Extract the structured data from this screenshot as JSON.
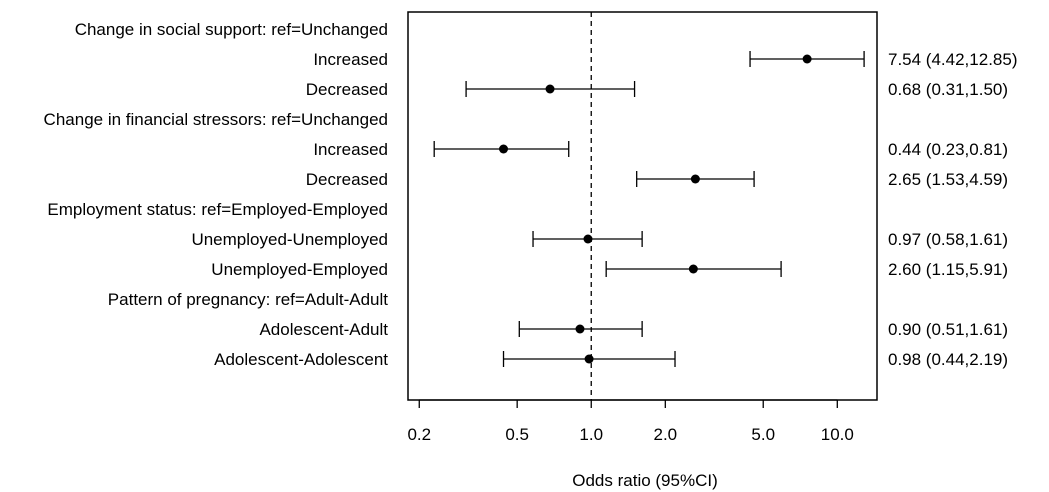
{
  "chart_data": {
    "type": "forest",
    "title": "",
    "xlabel": "Odds ratio (95%CI)",
    "ylabel": "",
    "xscale": "log",
    "xlim": [
      0.18,
      14.5
    ],
    "reference_line": 1.0,
    "xticks": [
      {
        "value": 0.2,
        "label": "0.2"
      },
      {
        "value": 0.5,
        "label": "0.5"
      },
      {
        "value": 1.0,
        "label": "1.0"
      },
      {
        "value": 2.0,
        "label": "2.0"
      },
      {
        "value": 5.0,
        "label": "5.0"
      },
      {
        "value": 10.0,
        "label": "10.0"
      }
    ],
    "grid": false,
    "rows": [
      {
        "label": "Change in social support: ref=Unchanged",
        "header": true
      },
      {
        "label": "Increased",
        "or": 7.54,
        "lo": 4.42,
        "hi": 12.85,
        "text": "7.54 (4.42,12.85)"
      },
      {
        "label": "Decreased",
        "or": 0.68,
        "lo": 0.31,
        "hi": 1.5,
        "text": "0.68 (0.31,1.50)"
      },
      {
        "label": "Change in financial stressors: ref=Unchanged",
        "header": true
      },
      {
        "label": "Increased",
        "or": 0.44,
        "lo": 0.23,
        "hi": 0.81,
        "text": "0.44 (0.23,0.81)"
      },
      {
        "label": "Decreased",
        "or": 2.65,
        "lo": 1.53,
        "hi": 4.59,
        "text": "2.65 (1.53,4.59)"
      },
      {
        "label": "Employment status: ref=Employed-Employed",
        "header": true
      },
      {
        "label": "Unemployed-Unemployed",
        "or": 0.97,
        "lo": 0.58,
        "hi": 1.61,
        "text": "0.97 (0.58,1.61)"
      },
      {
        "label": "Unemployed-Employed",
        "or": 2.6,
        "lo": 1.15,
        "hi": 5.91,
        "text": "2.60 (1.15,5.91)"
      },
      {
        "label": "Pattern of pregnancy: ref=Adult-Adult",
        "header": true
      },
      {
        "label": "Adolescent-Adult",
        "or": 0.9,
        "lo": 0.51,
        "hi": 1.61,
        "text": "0.90 (0.51,1.61)"
      },
      {
        "label": "Adolescent-Adolescent",
        "or": 0.98,
        "lo": 0.44,
        "hi": 2.19,
        "text": "0.98 (0.44,2.19)"
      }
    ]
  }
}
